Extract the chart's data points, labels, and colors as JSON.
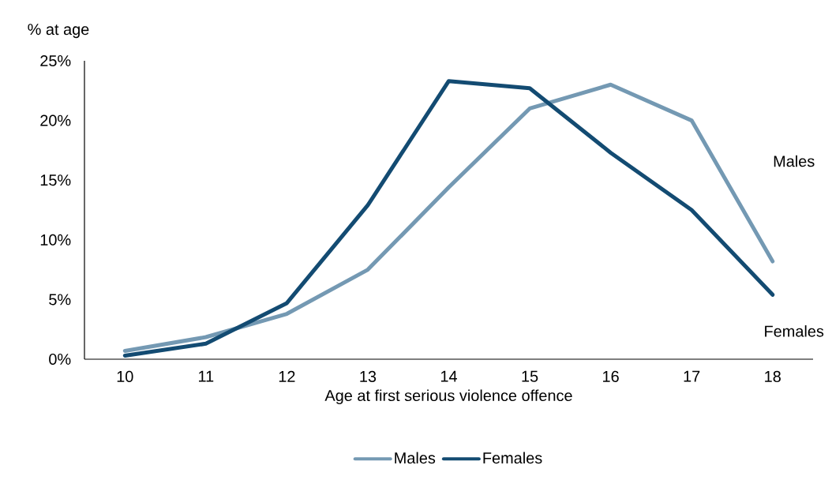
{
  "chart_data": {
    "type": "line",
    "xlabel": "Age at first serious violence offence",
    "ylabel": "% at age",
    "categories": [
      "10",
      "11",
      "12",
      "13",
      "14",
      "15",
      "16",
      "17",
      "18"
    ],
    "series": [
      {
        "name": "Males",
        "color": "#7499b3",
        "values": [
          0.7,
          1.85,
          3.8,
          7.5,
          14.4,
          21.0,
          23.0,
          20.0,
          8.2
        ]
      },
      {
        "name": "Females",
        "color": "#134b72",
        "values": [
          0.3,
          1.3,
          4.7,
          12.9,
          23.3,
          22.7,
          17.3,
          12.5,
          5.4
        ]
      }
    ],
    "ylim": [
      0,
      25
    ],
    "yticks": [
      {
        "value": 0,
        "label": "0%"
      },
      {
        "value": 5,
        "label": "5%"
      },
      {
        "value": 10,
        "label": "10%"
      },
      {
        "value": 15,
        "label": "15%"
      },
      {
        "value": 20,
        "label": "20%"
      },
      {
        "value": 25,
        "label": "25%"
      }
    ],
    "grid": false,
    "legend": "bottom",
    "marker": "none",
    "line_style": "solid"
  }
}
